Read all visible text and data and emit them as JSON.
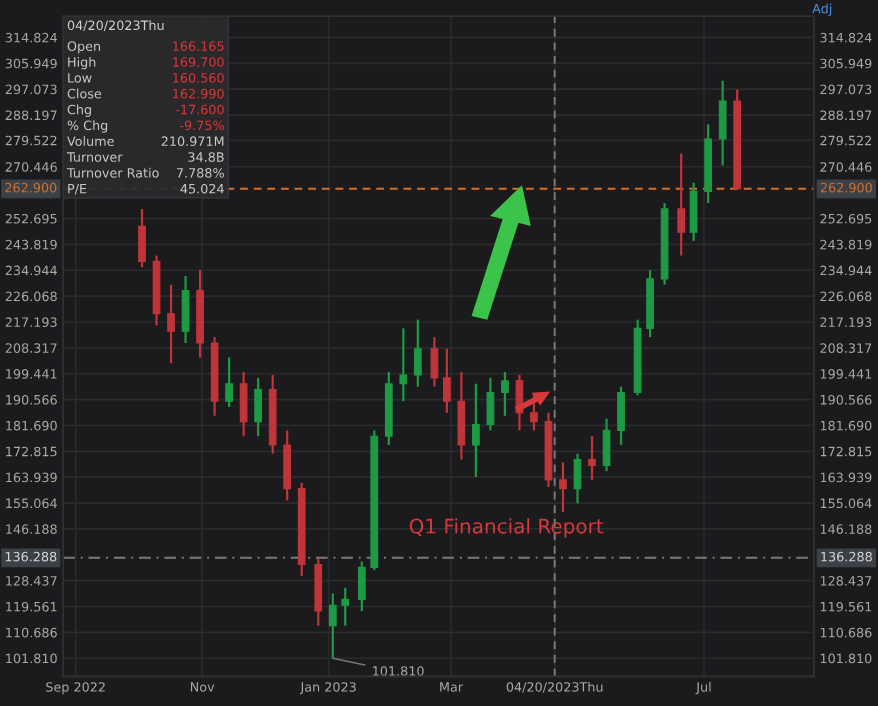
{
  "chart_data": {
    "type": "candlestick",
    "x": [
      "2022-10-03",
      "2022-10-10",
      "2022-10-17",
      "2022-10-24",
      "2022-10-31",
      "2022-11-07",
      "2022-11-14",
      "2022-11-21",
      "2022-11-28",
      "2022-12-05",
      "2022-12-12",
      "2022-12-19",
      "2022-12-27",
      "2023-01-03",
      "2023-01-09",
      "2023-01-17",
      "2023-01-23",
      "2023-01-30",
      "2023-02-06",
      "2023-02-13",
      "2023-02-21",
      "2023-02-27",
      "2023-03-06",
      "2023-03-13",
      "2023-03-20",
      "2023-03-27",
      "2023-04-03",
      "2023-04-10",
      "2023-04-17",
      "2023-04-24",
      "2023-05-01",
      "2023-05-08",
      "2023-05-15",
      "2023-05-22",
      "2023-05-30",
      "2023-06-05",
      "2023-06-12",
      "2023-06-20",
      "2023-06-26",
      "2023-07-03",
      "2023-07-10",
      "2023-07-17"
    ],
    "ohlc": [
      [
        250,
        256,
        236,
        238
      ],
      [
        238,
        240,
        216,
        220
      ],
      [
        220,
        230,
        203,
        214
      ],
      [
        214,
        233,
        210,
        228
      ],
      [
        228,
        235,
        205,
        210
      ],
      [
        210,
        212,
        185,
        190
      ],
      [
        190,
        205,
        188,
        196
      ],
      [
        196,
        200,
        178,
        183
      ],
      [
        183,
        198,
        178,
        194
      ],
      [
        194,
        199,
        172,
        175
      ],
      [
        175,
        180,
        156,
        160
      ],
      [
        160,
        162,
        130,
        134
      ],
      [
        134,
        136,
        113,
        118
      ],
      [
        113,
        124,
        101.81,
        120
      ],
      [
        120,
        126,
        113,
        122
      ],
      [
        122,
        135,
        118,
        133
      ],
      [
        133,
        180,
        132,
        178
      ],
      [
        178,
        200,
        175,
        196
      ],
      [
        196,
        215,
        190,
        199
      ],
      [
        199,
        218,
        195,
        208
      ],
      [
        208,
        212,
        195,
        198
      ],
      [
        198,
        208,
        186,
        190
      ],
      [
        190,
        200,
        170,
        175
      ],
      [
        175,
        196,
        164,
        182
      ],
      [
        182,
        198,
        180,
        193
      ],
      [
        193,
        200,
        185,
        197
      ],
      [
        197,
        199,
        180,
        186
      ],
      [
        186,
        192,
        180,
        183
      ],
      [
        183,
        186,
        160.56,
        163
      ],
      [
        163,
        169,
        152,
        160
      ],
      [
        160,
        172,
        155,
        170
      ],
      [
        170,
        178,
        163,
        168
      ],
      [
        168,
        184,
        166,
        180
      ],
      [
        180,
        195,
        175,
        193
      ],
      [
        193,
        218,
        192,
        215
      ],
      [
        215,
        235,
        212,
        232
      ],
      [
        232,
        258,
        230,
        256
      ],
      [
        256,
        275,
        240,
        248
      ],
      [
        248,
        265,
        245,
        262
      ],
      [
        262,
        285,
        258,
        280
      ],
      [
        280,
        300,
        271,
        293
      ],
      [
        293,
        297,
        262.9,
        262.9
      ]
    ],
    "colors": [
      "#c0353a",
      "#c0353a",
      "#c0353a",
      "#1e9a45",
      "#c0353a",
      "#c0353a",
      "#1e9a45",
      "#c0353a",
      "#1e9a45",
      "#c0353a",
      "#c0353a",
      "#c0353a",
      "#c0353a",
      "#1e9a45",
      "#1e9a45",
      "#1e9a45",
      "#1e9a45",
      "#1e9a45",
      "#1e9a45",
      "#1e9a45",
      "#c0353a",
      "#c0353a",
      "#c0353a",
      "#1e9a45",
      "#1e9a45",
      "#1e9a45",
      "#c0353a",
      "#c0353a",
      "#c0353a",
      "#c0353a",
      "#1e9a45",
      "#c0353a",
      "#1e9a45",
      "#1e9a45",
      "#1e9a45",
      "#1e9a45",
      "#1e9a45",
      "#c0353a",
      "#1e9a45",
      "#1e9a45",
      "#1e9a45",
      "#c0353a"
    ],
    "xlim": [
      "2022-08-26",
      "2023-08-23"
    ],
    "xticks": [
      {
        "value": "2022-09-01",
        "label": "Sep 2022"
      },
      {
        "value": "2022-11-01",
        "label": "Nov"
      },
      {
        "value": "2023-01-01",
        "label": "Jan 2023"
      },
      {
        "value": "2023-03-01",
        "label": "Mar"
      },
      {
        "value": "2023-04-20",
        "label": "04/20/2023Thu"
      },
      {
        "value": "2023-07-01",
        "label": "Jul"
      }
    ],
    "ylim": [
      95.6,
      322.1
    ],
    "yticks": [
      {
        "value": 101.81,
        "label": "101.810"
      },
      110.686,
      119.561,
      128.437,
      146.188,
      155.064,
      163.939,
      172.815,
      {
        "value": 181.69,
        "label": "181.690"
      },
      190.566,
      199.441,
      208.317,
      217.193,
      226.068,
      234.944,
      243.819,
      252.695,
      270.446,
      279.522,
      288.197,
      297.073,
      305.949,
      314.824
    ],
    "y2lim": [
      95.6,
      322.1
    ],
    "y2ticks": [
      {
        "value": 101.81,
        "label": "101.810"
      },
      110.686,
      119.561,
      128.437,
      146.188,
      155.064,
      163.939,
      172.815,
      {
        "value": 181.69,
        "label": "181.690"
      },
      190.566,
      199.441,
      208.317,
      217.193,
      226.068,
      234.944,
      243.819,
      252.695,
      270.446,
      279.522,
      288.197,
      297.073,
      305.949,
      314.824
    ],
    "ref_lines": [
      {
        "axis": "y",
        "value": 262.9,
        "label": "262.900",
        "color": "#d0702a",
        "line_style": "dashed"
      },
      {
        "axis": "y",
        "value": 136.288,
        "label": "136.288",
        "color": "#7a7a7a",
        "line_style": "dashdot"
      },
      {
        "axis": "x",
        "value": "2023-04-20",
        "color": "#7a7a7a",
        "line_style": "dashed"
      }
    ],
    "grid": true,
    "annotations": [
      {
        "text": "101.810",
        "x": "2023-01-03",
        "y": 101.81
      },
      "Q1 Financial Report",
      "Adj",
      "04/20/2023Thu",
      "Open",
      "166.165",
      "High",
      "169.700",
      "Low",
      "160.560",
      "Close",
      "162.990",
      "Chg",
      "-17.600",
      "% Chg",
      "-9.75%",
      "Volume",
      "210.971M",
      "Turnover",
      "34.8B",
      "Turnover Ratio",
      "7.788%",
      "P/E",
      "45.024"
    ]
  }
}
